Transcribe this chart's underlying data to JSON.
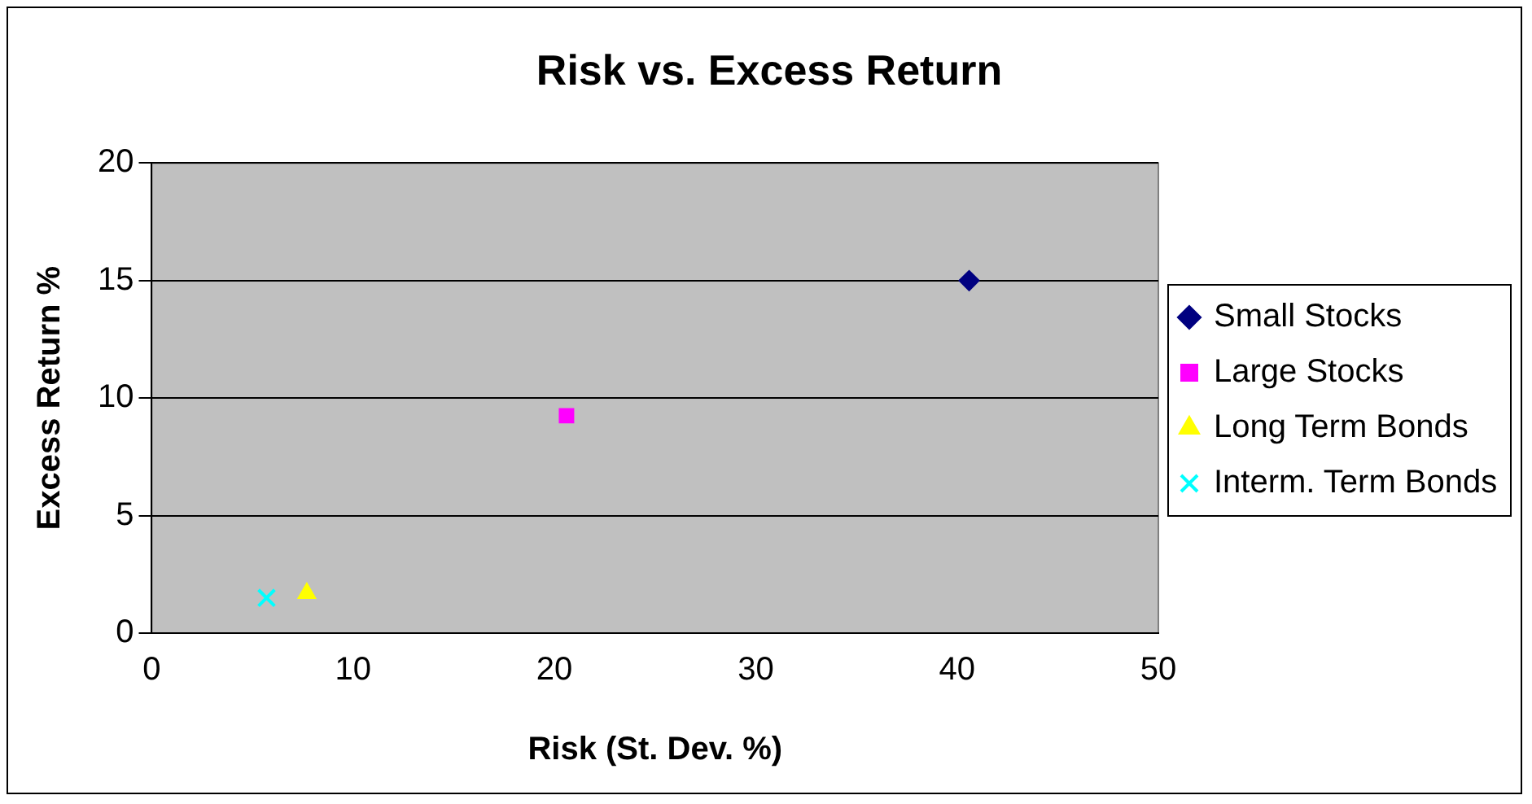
{
  "chart_data": {
    "type": "scatter",
    "title": "Risk vs. Excess Return",
    "xlabel": "Risk (St. Dev. %)",
    "ylabel": "Excess Return %",
    "xlim": [
      0,
      50
    ],
    "xticks": [
      0,
      10,
      20,
      30,
      40,
      50
    ],
    "ylim": [
      0,
      20
    ],
    "yticks": [
      0,
      5,
      10,
      15,
      20
    ],
    "grid": "y",
    "legend": "right",
    "series": [
      {
        "name": "Small Stocks",
        "color": "#000080",
        "marker": "diamond",
        "x": [
          40.6
        ],
        "values": [
          15.0
        ]
      },
      {
        "name": "Large Stocks",
        "color": "#ff00ff",
        "marker": "square",
        "x": [
          20.6
        ],
        "values": [
          9.25
        ]
      },
      {
        "name": "Long Term Bonds",
        "color": "#ffff00",
        "marker": "triangle",
        "x": [
          7.7
        ],
        "values": [
          1.7
        ]
      },
      {
        "name": "Interm. Term Bonds",
        "color": "#00ffff",
        "marker": "cross",
        "x": [
          5.7
        ],
        "values": [
          1.5
        ]
      }
    ]
  }
}
